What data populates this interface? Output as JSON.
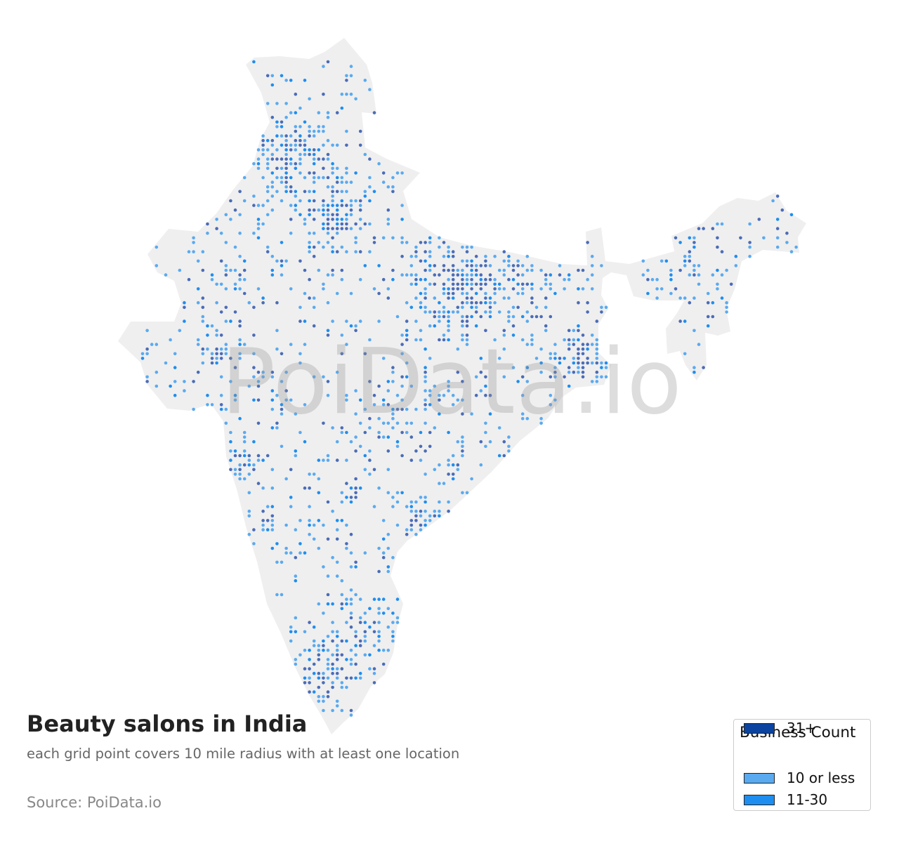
{
  "title": "Beauty salons in India",
  "subtitle": "each grid point covers 10 mile radius with at least one location",
  "source": "Source: PoiData.io",
  "watermark": "PoiData.io",
  "colors": {
    "land": "#efefef",
    "low": "#5aaaf0",
    "mid": "#1e8ef0",
    "high": "#4b6cb7",
    "legend_high": "#0a44a0"
  },
  "legend": {
    "title": "Business Count",
    "items": [
      {
        "label": "10 or less",
        "color": "#5aaaf0"
      },
      {
        "label": "11-30",
        "color": "#1e8ef0"
      },
      {
        "label": "31+",
        "color": "#0a44a0"
      }
    ]
  }
}
